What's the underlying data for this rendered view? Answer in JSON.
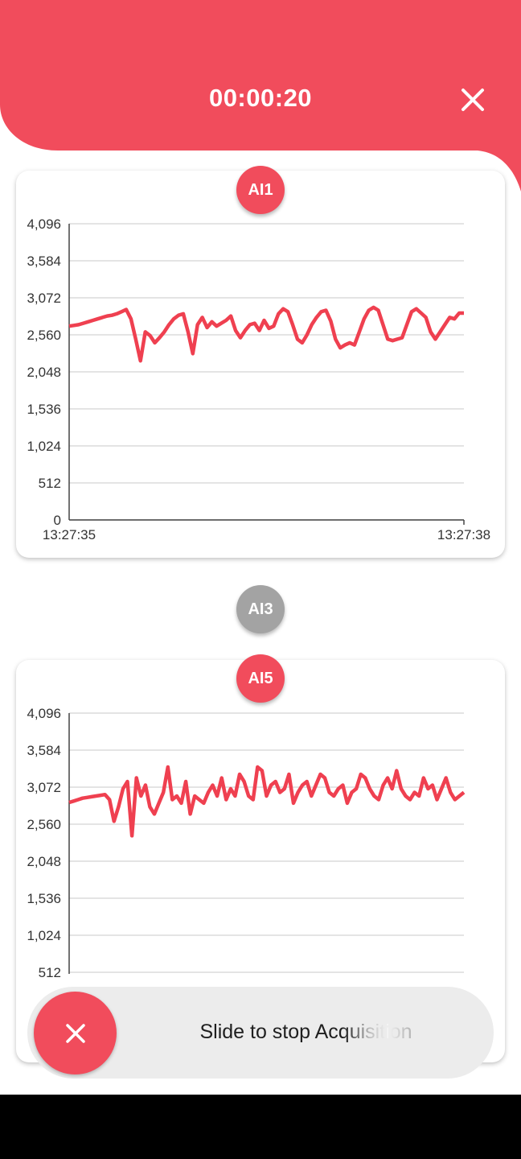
{
  "colors": {
    "accent": "#f14c5c",
    "inactive": "#a3a3a3",
    "line": "#ef4050"
  },
  "header": {
    "timer": "00:00:20",
    "close_icon": "close-icon"
  },
  "channels": [
    {
      "label": "AI1",
      "active": true
    },
    {
      "label": "AI3",
      "active": false
    },
    {
      "label": "AI5",
      "active": true
    }
  ],
  "slider": {
    "label": "Slide to stop Acquisition",
    "knob_icon": "close-icon"
  },
  "chart_data": [
    {
      "type": "line",
      "title": "AI1",
      "y_ticks": [
        "4,096",
        "3,584",
        "3,072",
        "2,560",
        "2,048",
        "1,536",
        "1,024",
        "512",
        "0"
      ],
      "ylim": [
        0,
        4096
      ],
      "x_ticks": [
        "13:27:35",
        "13:27:38"
      ],
      "grid": true,
      "series": [
        {
          "values": [
            2680,
            2690,
            2700,
            2720,
            2740,
            2760,
            2780,
            2800,
            2820,
            2830,
            2850,
            2880,
            2910,
            2780,
            2500,
            2200,
            2600,
            2550,
            2450,
            2520,
            2600,
            2700,
            2780,
            2830,
            2850,
            2600,
            2300,
            2700,
            2800,
            2660,
            2740,
            2680,
            2720,
            2760,
            2820,
            2620,
            2520,
            2620,
            2700,
            2720,
            2620,
            2760,
            2650,
            2680,
            2850,
            2920,
            2880,
            2700,
            2500,
            2450,
            2560,
            2700,
            2800,
            2880,
            2900,
            2750,
            2500,
            2380,
            2420,
            2450,
            2420,
            2600,
            2780,
            2900,
            2940,
            2900,
            2700,
            2500,
            2480,
            2500,
            2520,
            2700,
            2880,
            2920,
            2860,
            2800,
            2600,
            2500,
            2600,
            2700,
            2800,
            2780,
            2860,
            2860
          ]
        }
      ]
    },
    {
      "type": "line",
      "title": "AI5",
      "y_ticks": [
        "4,096",
        "3,584",
        "3,072",
        "2,560",
        "2,048",
        "1,536",
        "1,024",
        "512"
      ],
      "ylim": [
        0,
        4096
      ],
      "grid": true,
      "series": [
        {
          "values": [
            2860,
            2880,
            2900,
            2920,
            2930,
            2940,
            2950,
            2960,
            2970,
            2900,
            2600,
            2800,
            3050,
            3150,
            2400,
            3200,
            2950,
            3100,
            2800,
            2700,
            2850,
            3000,
            3350,
            2900,
            2950,
            2850,
            3150,
            2700,
            2950,
            2900,
            2850,
            3000,
            3100,
            2950,
            3200,
            2900,
            3050,
            2950,
            3250,
            3150,
            2950,
            2900,
            3350,
            3300,
            2950,
            3100,
            3150,
            3000,
            3050,
            3250,
            2850,
            3000,
            3100,
            3150,
            2950,
            3100,
            3250,
            3200,
            3000,
            2950,
            3050,
            3100,
            2850,
            3000,
            3050,
            3250,
            3200,
            3050,
            2950,
            2900,
            3100,
            3200,
            3050,
            3300,
            3050,
            2950,
            2900,
            3000,
            2950,
            3200,
            3050,
            3100,
            2900,
            3050,
            3200,
            3000,
            2900,
            2950,
            3000
          ]
        }
      ]
    }
  ]
}
